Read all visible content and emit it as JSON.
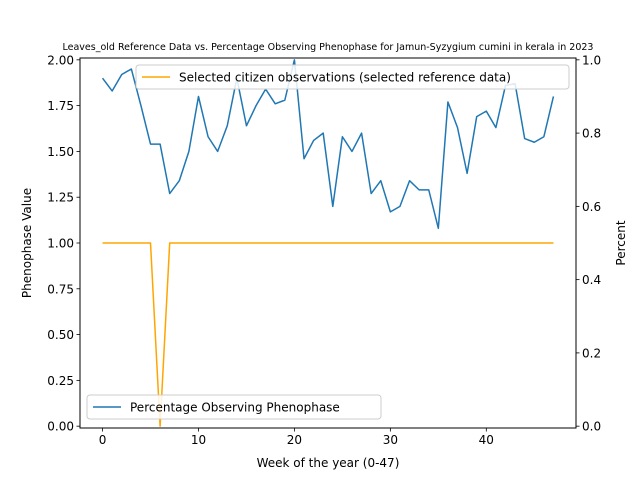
{
  "chart_data": {
    "type": "line",
    "title": "Leaves_old Reference Data vs. Percentage Observing Phenophase for Jamun-Syzygium cumini in kerala in 2023",
    "xlabel": "Week of the year (0-47)",
    "ylabel_left": "Phenophase Value",
    "ylabel_right": "Percent",
    "xlim": [
      -2.35,
      49.35
    ],
    "ylim_left": [
      -0.01,
      2.01
    ],
    "ylim_right": [
      -0.005,
      1.005
    ],
    "x_ticks": [
      0,
      10,
      20,
      30,
      40
    ],
    "y_left_ticks": [
      "0.00",
      "0.25",
      "0.50",
      "0.75",
      "1.00",
      "1.25",
      "1.50",
      "1.75",
      "2.00"
    ],
    "y_right_ticks": [
      "0.0",
      "0.2",
      "0.4",
      "0.6",
      "0.8",
      "1.0"
    ],
    "grid": false,
    "series": [
      {
        "name": "Selected citizen observations (selected reference data)",
        "axis": "left",
        "color": "#ffa500",
        "x": [
          0,
          1,
          2,
          3,
          4,
          5,
          6,
          7,
          8,
          9,
          10,
          11,
          12,
          13,
          14,
          15,
          16,
          17,
          18,
          19,
          20,
          21,
          22,
          23,
          24,
          25,
          26,
          27,
          28,
          29,
          30,
          31,
          32,
          33,
          34,
          35,
          36,
          37,
          38,
          39,
          40,
          41,
          42,
          43,
          44,
          45,
          46,
          47
        ],
        "y": [
          1,
          1,
          1,
          1,
          1,
          1,
          0,
          1,
          1,
          1,
          1,
          1,
          1,
          1,
          1,
          1,
          1,
          1,
          1,
          1,
          1,
          1,
          1,
          1,
          1,
          1,
          1,
          1,
          1,
          1,
          1,
          1,
          1,
          1,
          1,
          1,
          1,
          1,
          1,
          1,
          1,
          1,
          1,
          1,
          1,
          1,
          1,
          1
        ]
      },
      {
        "name": "Percentage Observing Phenophase",
        "axis": "right",
        "color": "#1f77b4",
        "x": [
          0,
          1,
          2,
          3,
          4,
          5,
          6,
          7,
          8,
          9,
          10,
          11,
          12,
          13,
          14,
          15,
          16,
          17,
          18,
          19,
          20,
          21,
          22,
          23,
          24,
          25,
          26,
          27,
          28,
          29,
          30,
          31,
          32,
          33,
          34,
          35,
          36,
          37,
          38,
          39,
          40,
          41,
          42,
          43,
          44,
          45,
          46,
          47
        ],
        "y": [
          0.95,
          0.915,
          0.96,
          0.975,
          0.875,
          0.77,
          0.77,
          0.635,
          0.67,
          0.75,
          0.9,
          0.79,
          0.75,
          0.82,
          0.95,
          0.82,
          0.875,
          0.92,
          0.88,
          0.89,
          1.0,
          0.73,
          0.78,
          0.8,
          0.6,
          0.79,
          0.75,
          0.8,
          0.635,
          0.67,
          0.585,
          0.6,
          0.67,
          0.645,
          0.645,
          0.54,
          0.885,
          0.815,
          0.69,
          0.845,
          0.86,
          0.815,
          0.93,
          0.935,
          0.785,
          0.775,
          0.79,
          0.9
        ]
      }
    ],
    "legend_top": "upper-right",
    "legend_bottom": "lower-left"
  }
}
